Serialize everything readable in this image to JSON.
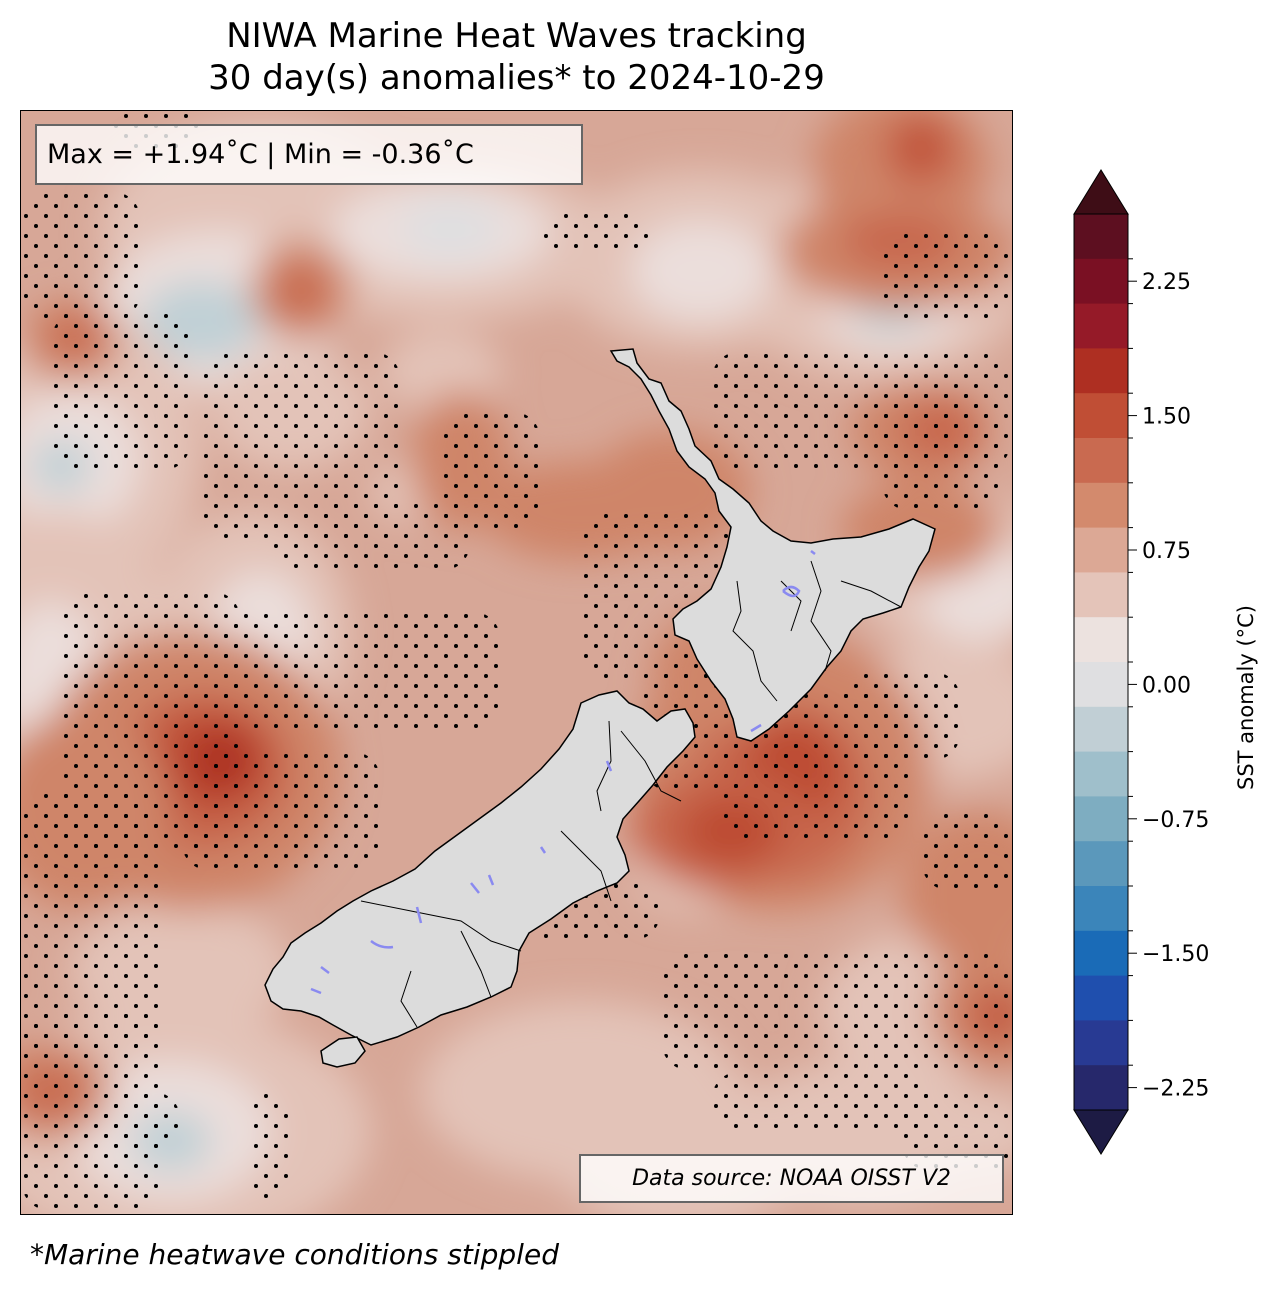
{
  "title": {
    "line1": "NIWA Marine Heat Waves tracking",
    "line2": "30 day(s) anomalies* to 2024-10-29"
  },
  "stats_box": "Max = +1.94˚C | Min = -0.36˚C",
  "source_box": "Data source: NOAA OISST V2",
  "footnote": "*Marine heatwave conditions stippled",
  "colorbar": {
    "label": "SST anomaly (°C)",
    "ticks": [
      "2.25",
      "1.50",
      "0.75",
      "0.00",
      "−0.75",
      "−1.50",
      "−2.25"
    ],
    "levels_top_to_bottom": [
      "#5d0f20",
      "#7a1023",
      "#951a28",
      "#ae2f22",
      "#c04e35",
      "#c96a50",
      "#d38a6d",
      "#dca895",
      "#e4c4b9",
      "#ece2df",
      "#dfdfe1",
      "#c1cfd5",
      "#9fbfcb",
      "#7eadc1",
      "#5b98bb",
      "#3b85ba",
      "#1a6bb7",
      "#1f4fae",
      "#283a93",
      "#26286b"
    ],
    "extend_top_color": "#3e0d16",
    "extend_bottom_color": "#1d1b44"
  },
  "map": {
    "land_color": "#dcdcdc",
    "lake_color": "#8a8af0",
    "anomaly_colors": {
      "base": "#d7a797",
      "light": "#e3c3b8",
      "lighter": "#ebdedb",
      "neutral": "#dfdfe1",
      "cool": "#c0d0d6",
      "warm": "#cf8569",
      "warmer": "#c8674d",
      "hot": "#bd4b33",
      "hottest": "#ab2d22"
    }
  }
}
